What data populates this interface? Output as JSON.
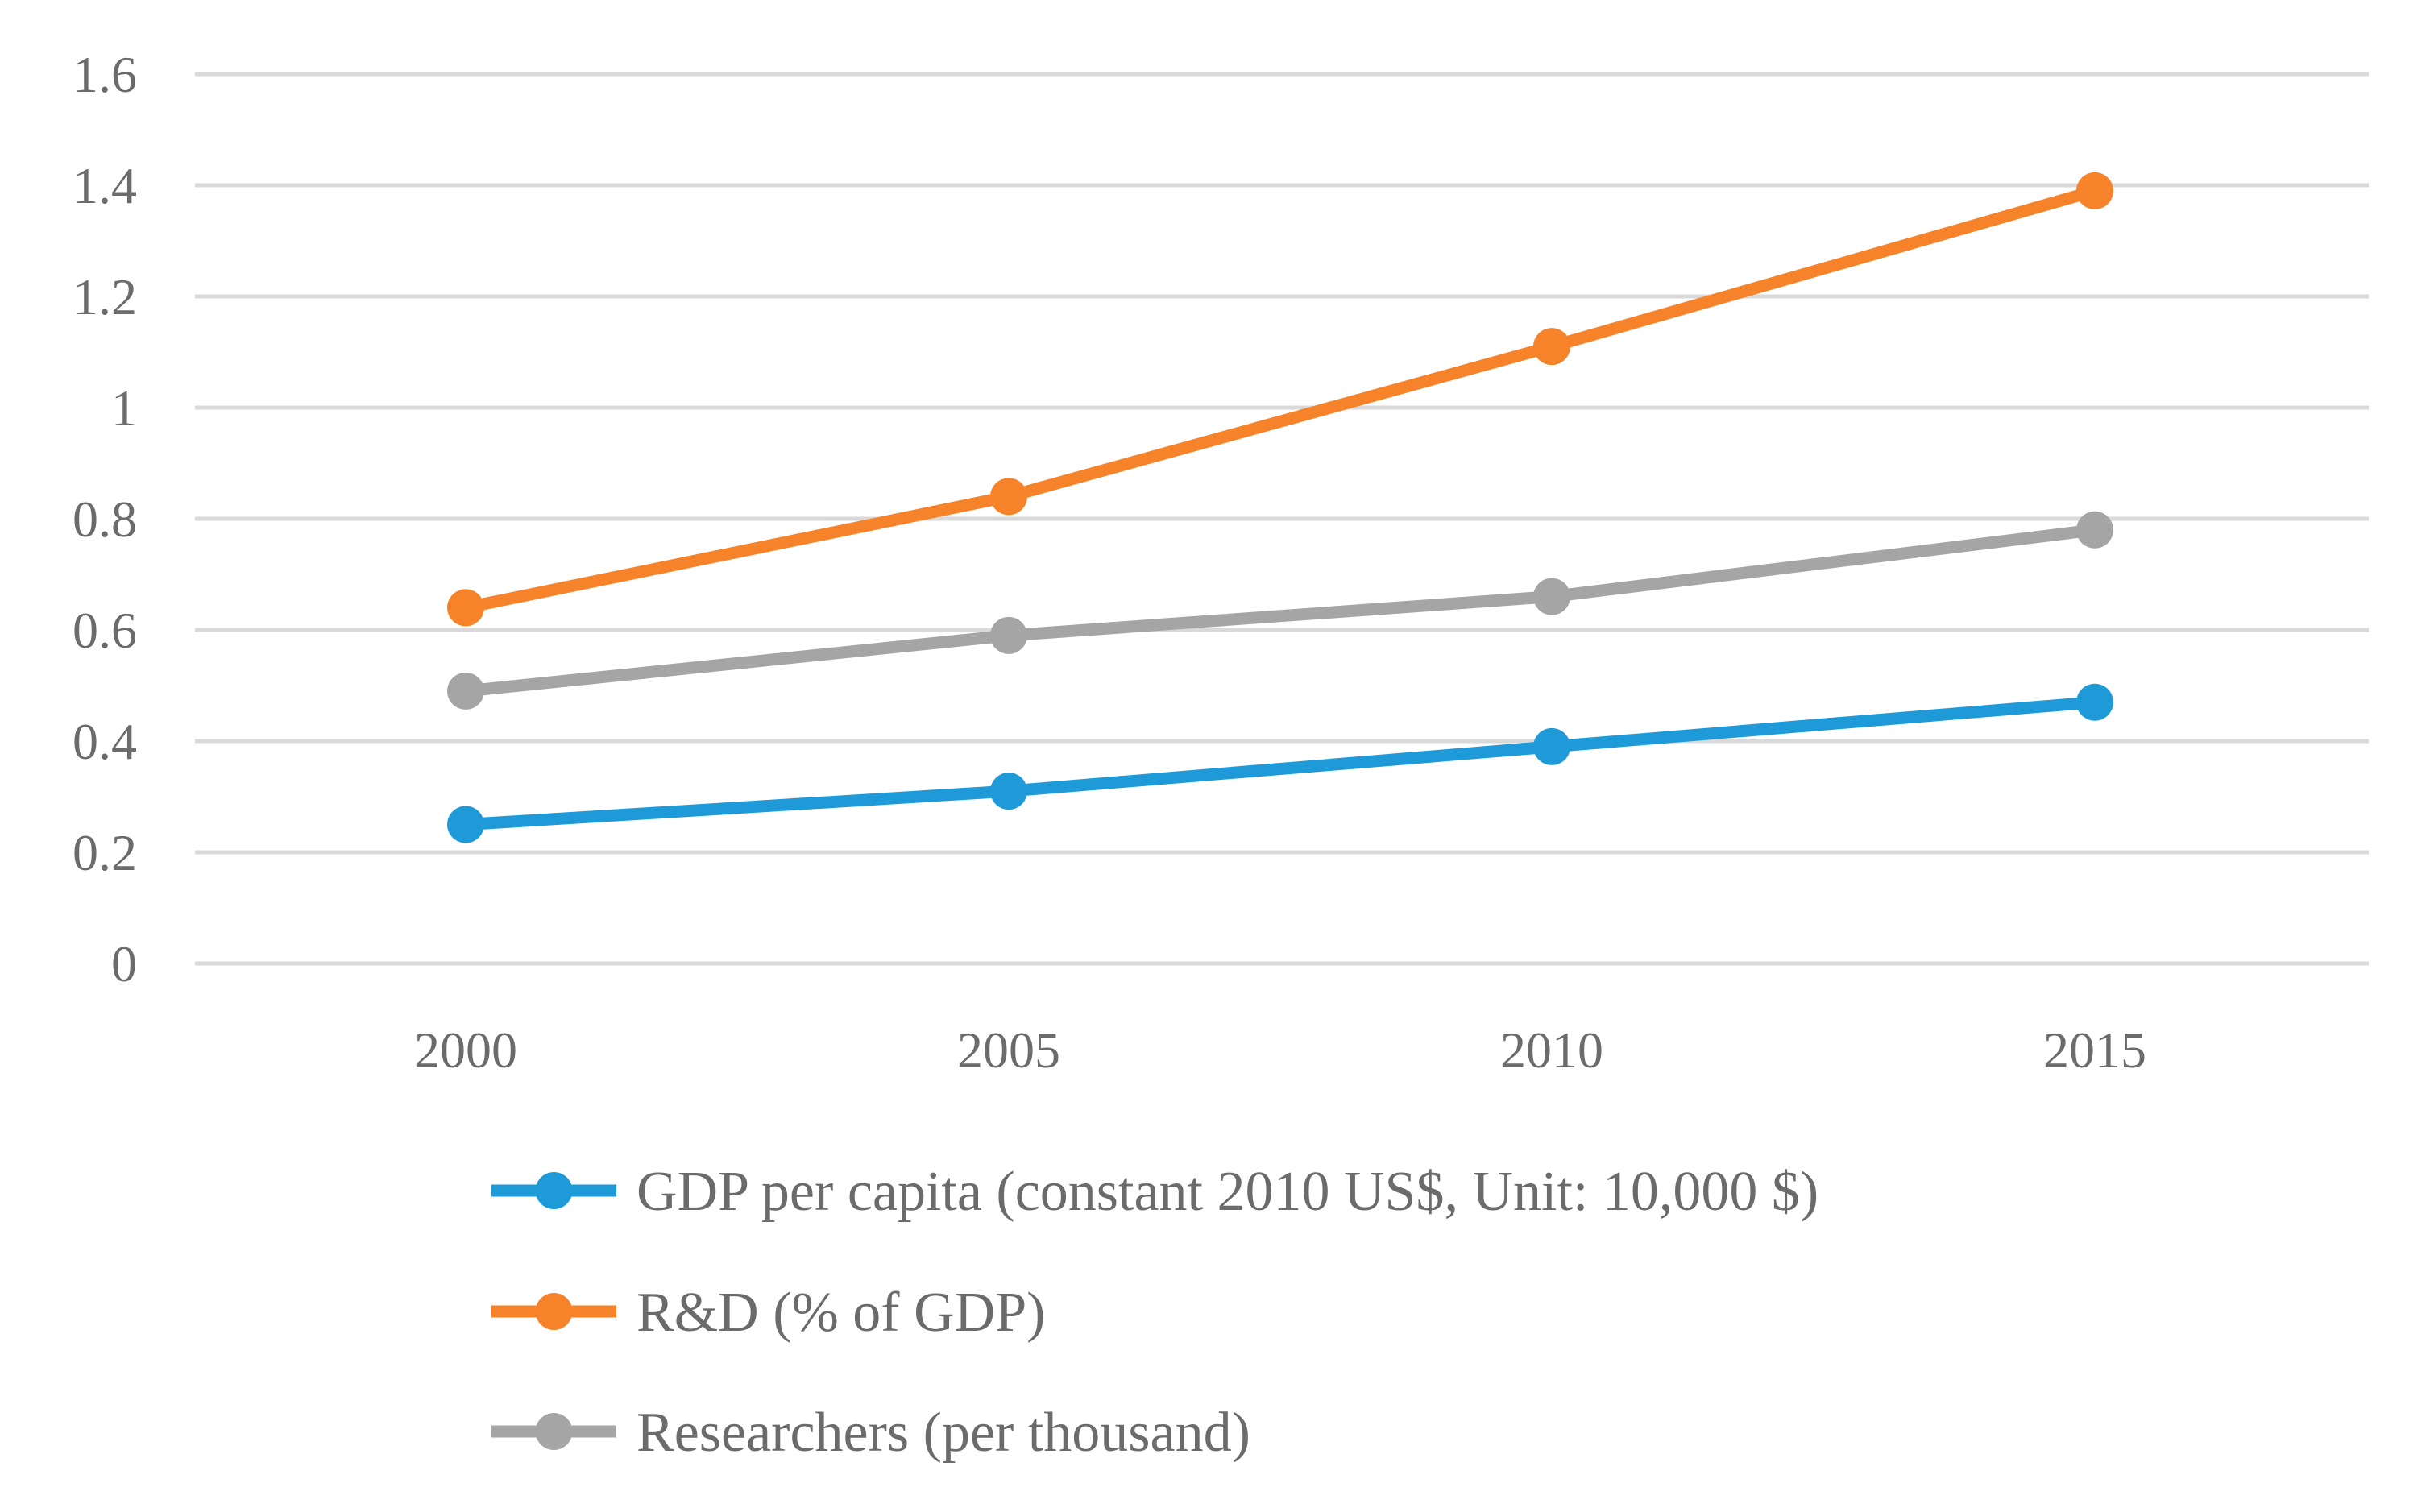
{
  "chart_data": {
    "type": "line",
    "title": "",
    "xlabel": "",
    "ylabel": "",
    "x": [
      "2000",
      "2005",
      "2010",
      "2015"
    ],
    "ylim": [
      0,
      1.6
    ],
    "yticks": [
      "0",
      "0.2",
      "0.4",
      "0.6",
      "0.8",
      "1",
      "1.2",
      "1.4",
      "1.6"
    ],
    "grid": true,
    "legend_position": "bottom",
    "series": [
      {
        "name": "GDP per capita (constant 2010 US$, Unit: 10,000 $)",
        "color": "#1f9ad9",
        "values": [
          0.25,
          0.31,
          0.39,
          0.47
        ]
      },
      {
        "name": "R&D (% of GDP)",
        "color": "#f6822a",
        "values": [
          0.64,
          0.84,
          1.11,
          1.39
        ]
      },
      {
        "name": "Researchers (per thousand)",
        "color": "#a5a5a5",
        "values": [
          0.49,
          0.59,
          0.66,
          0.78
        ]
      }
    ]
  }
}
